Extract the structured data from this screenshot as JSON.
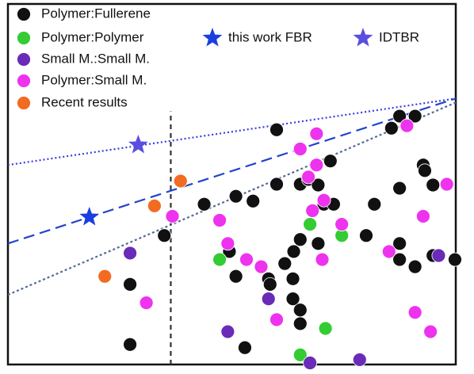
{
  "chart_data": {
    "type": "scatter",
    "xlim": [
      0,
      5.5
    ],
    "ylim": [
      0,
      4.5
    ],
    "series": [
      {
        "name": "Polymer:Fullerene",
        "color": "#111111",
        "marker": "circle",
        "x": [
          3.3,
          4.81,
          5.0,
          4.71,
          3.96,
          5.1,
          5.12,
          5.22,
          4.81,
          3.3,
          3.59,
          3.69,
          3.81,
          2.8,
          3.01,
          2.41,
          3.88,
          4.0,
          4.5,
          1.92,
          3.59,
          3.51,
          3.81,
          4.4,
          2.72,
          3.4,
          4.81,
          4.81,
          5.0,
          5.22,
          5.49,
          2.8,
          3.2,
          3.22,
          3.5,
          1.5,
          3.5,
          3.59,
          3.59,
          2.91,
          1.5
        ],
        "values": [
          2.93,
          3.1,
          3.1,
          2.95,
          2.54,
          2.49,
          2.42,
          2.24,
          2.2,
          2.25,
          2.25,
          2.31,
          2.24,
          2.1,
          2.04,
          2.0,
          2.0,
          2.0,
          2.0,
          1.61,
          1.56,
          1.41,
          1.51,
          1.61,
          1.41,
          1.26,
          1.51,
          1.31,
          1.22,
          1.36,
          1.31,
          1.1,
          1.07,
          1.0,
          1.07,
          1.0,
          0.82,
          0.68,
          0.51,
          0.21,
          0.25
        ]
      },
      {
        "name": "Polymer:Polymer",
        "color": "#33cc33",
        "marker": "circle",
        "x": [
          3.71,
          2.6,
          4.1,
          3.9,
          3.59
        ],
        "values": [
          1.75,
          1.31,
          1.61,
          0.45,
          0.12
        ]
      },
      {
        "name": "Small M.:Small M.",
        "color": "#6a2bb8",
        "marker": "circle",
        "x": [
          1.5,
          3.2,
          2.7,
          3.71,
          4.32,
          5.29
        ],
        "values": [
          1.39,
          0.82,
          0.41,
          0.02,
          0.06,
          1.36
        ]
      },
      {
        "name": "Polymer:Small M.",
        "color": "#ee33ee",
        "marker": "circle",
        "x": [
          3.59,
          3.79,
          3.79,
          3.69,
          3.74,
          3.88,
          2.02,
          2.6,
          2.7,
          2.93,
          3.11,
          3.3,
          3.86,
          4.1,
          4.68,
          4.9,
          5.1,
          5.39,
          5.0,
          5.19,
          1.7
        ],
        "values": [
          2.69,
          2.88,
          2.49,
          2.34,
          1.92,
          2.05,
          1.85,
          1.8,
          1.51,
          1.31,
          1.22,
          0.56,
          1.31,
          1.75,
          1.41,
          2.98,
          1.85,
          2.25,
          0.65,
          0.41,
          0.77
        ]
      },
      {
        "name": "Recent results",
        "color": "#f26b21",
        "marker": "circle",
        "x": [
          1.19,
          1.8,
          2.12
        ],
        "values": [
          1.1,
          1.98,
          2.29
        ]
      },
      {
        "name": "this work FBR",
        "color": "#1a3fe0",
        "marker": "star",
        "x": [
          1.0
        ],
        "values": [
          1.84
        ]
      },
      {
        "name": "IDTBR",
        "color": "#5a4ee0",
        "marker": "star",
        "x": [
          1.6
        ],
        "values": [
          2.74
        ]
      }
    ],
    "reference_lines": [
      {
        "color": "#3b3bdc",
        "dash": "2 3",
        "x": [
          0,
          5.5
        ],
        "values": [
          2.49,
          3.32
        ]
      },
      {
        "color": "#2244cc",
        "dash": "14 7",
        "x": [
          0,
          5.5
        ],
        "values": [
          1.51,
          3.32
        ]
      },
      {
        "color": "#556a99",
        "dash": "3 3",
        "x": [
          0,
          5.5
        ],
        "values": [
          0.87,
          3.27
        ]
      },
      {
        "color": "#333333",
        "dash": "6 5",
        "x": [
          2,
          2
        ],
        "values": [
          0,
          3.16
        ]
      }
    ]
  }
}
